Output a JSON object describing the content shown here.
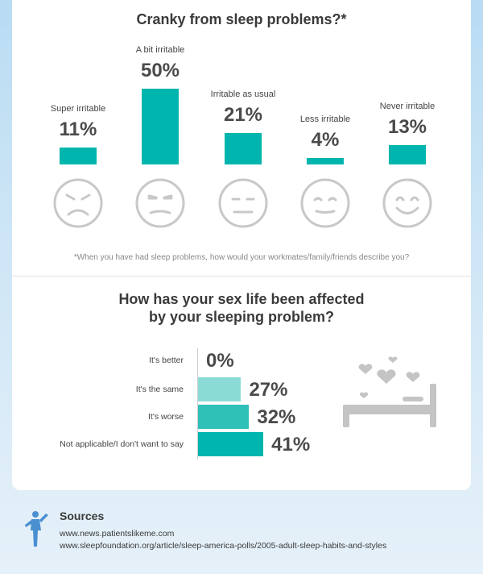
{
  "chart_data": [
    {
      "type": "bar",
      "title": "Cranky from sleep problems?*",
      "categories": [
        "Super irritable",
        "A bit irritable",
        "Irritable as usual",
        "Less irritable",
        "Never irritable"
      ],
      "values": [
        11,
        50,
        21,
        4,
        13
      ],
      "value_labels": [
        "11%",
        "50%",
        "21%",
        "4%",
        "13%"
      ],
      "footnote": "*When you have had sleep problems, how would your workmates/family/friends describe you?",
      "faces": [
        "angry-face-icon",
        "annoyed-face-icon",
        "neutral-face-icon",
        "content-face-icon",
        "smiling-face-icon"
      ],
      "color": "#00b5ad"
    },
    {
      "type": "bar",
      "orientation": "horizontal",
      "title": "How has your sex life been affected by your sleeping problem?",
      "categories": [
        "It's better",
        "It's the same",
        "It's worse",
        "Not applicable/I don't want to say"
      ],
      "values": [
        0,
        27,
        32,
        41
      ],
      "value_labels": [
        "0%",
        "27%",
        "32%",
        "41%"
      ],
      "colors": [
        "#a8e4e1",
        "#8adbd6",
        "#2fc0b8",
        "#00b5ad"
      ]
    }
  ],
  "sources": {
    "heading": "Sources",
    "lines": [
      "www.news.patientslikeme.com",
      "www.sleepfoundation.org/article/sleep-america-polls/2005-adult-sleep-habits-and-styles"
    ]
  },
  "colors": {
    "accent": "#00b5ad",
    "face_stroke": "#c8c8c8",
    "runner": "#4a8fd0"
  }
}
